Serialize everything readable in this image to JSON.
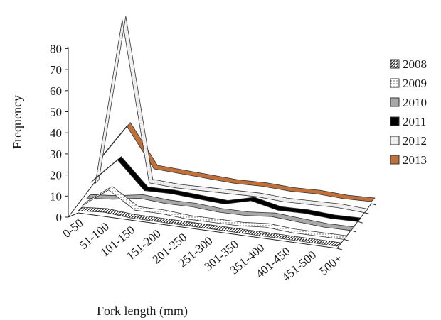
{
  "chart_data": {
    "type": "line",
    "subtype": "3d-line",
    "title": "",
    "xlabel": "Fork length (mm)",
    "ylabel": "Frequency",
    "ylim": [
      0,
      80
    ],
    "yticks": [
      0,
      10,
      20,
      30,
      40,
      50,
      60,
      70,
      80
    ],
    "categories": [
      "0-50",
      "51-100",
      "101-150",
      "151-200",
      "201-250",
      "251-300",
      "301-350",
      "351-400",
      "401-450",
      "451-500",
      "500+"
    ],
    "legend_position": "right",
    "grid": false,
    "series": [
      {
        "name": "2008",
        "color": "#ffffff",
        "pattern": "hatch-dark",
        "values": [
          1,
          2,
          1,
          1,
          1,
          1,
          1,
          1,
          1,
          1,
          1
        ]
      },
      {
        "name": "2009",
        "color": "#ffffff",
        "pattern": "dotted",
        "values": [
          0,
          9,
          1,
          1,
          0,
          0,
          0,
          1,
          0,
          0,
          0
        ]
      },
      {
        "name": "2010",
        "color": "#a8a8a8",
        "pattern": "solid",
        "values": [
          0,
          1,
          3,
          2,
          2,
          1,
          1,
          2,
          1,
          0,
          0
        ]
      },
      {
        "name": "2011",
        "color": "#000000",
        "pattern": "solid",
        "values": [
          4,
          16,
          3,
          3,
          2,
          1,
          4,
          1,
          1,
          0,
          0
        ]
      },
      {
        "name": "2012",
        "color": "#d0d0d0",
        "pattern": "light",
        "values": [
          0,
          79,
          3,
          2,
          2,
          2,
          2,
          1,
          1,
          1,
          0
        ]
      },
      {
        "name": "2013",
        "color": "#c0703a",
        "pattern": "solid",
        "values": [
          8,
          25,
          6,
          5,
          4,
          3,
          3,
          2,
          2,
          1,
          1
        ]
      }
    ]
  }
}
